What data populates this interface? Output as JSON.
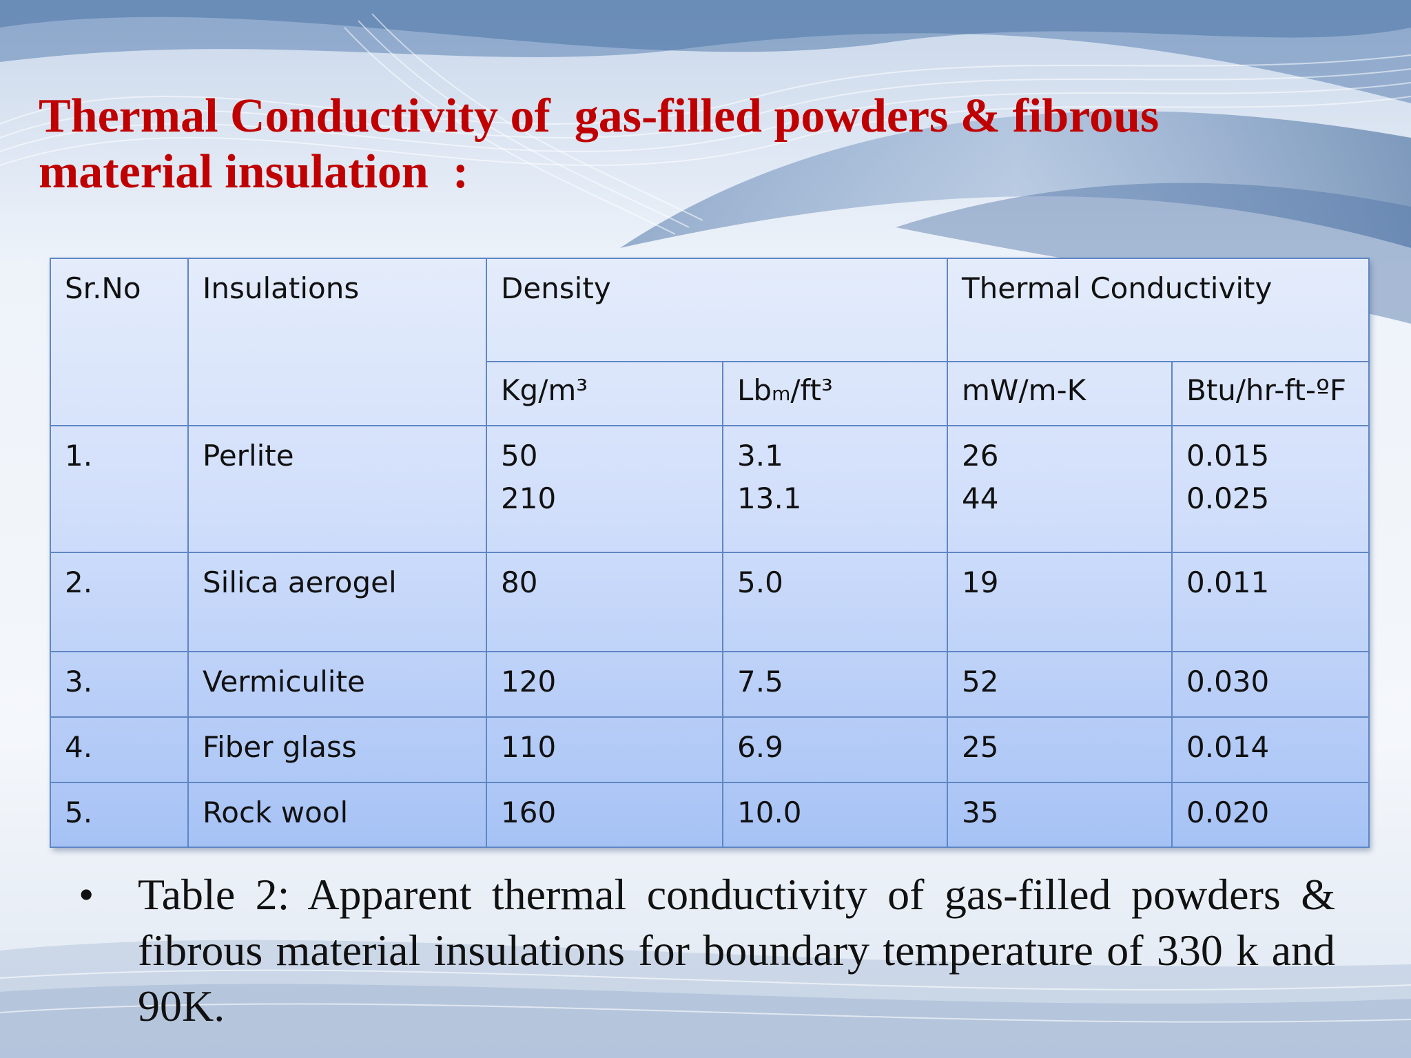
{
  "slide": {
    "title": "Thermal Conductivity of  gas-filled powders & fibrous\nmaterial insulation  :",
    "table": {
      "header": {
        "sr_no": "Sr.No",
        "insulations": "Insulations",
        "density": "Density",
        "thermal_conductivity": "Thermal   Conductivity",
        "units": [
          "Kg/m³",
          "Lbm/ft³",
          "mW/m-K",
          "Btu/hr-ft-ºF"
        ]
      },
      "rows": [
        {
          "sr": "1.",
          "name": "Perlite",
          "kg_m3": "50\n210",
          "lbm_ft3": "3.1\n13.1",
          "mw_mk": "26\n44",
          "btu": "0.015\n0.025"
        },
        {
          "sr": "2.",
          "name": "Silica aerogel",
          "kg_m3": "80",
          "lbm_ft3": "5.0",
          "mw_mk": "19",
          "btu": "0.011"
        },
        {
          "sr": "3.",
          "name": "Vermiculite",
          "kg_m3": "120",
          "lbm_ft3": "7.5",
          "mw_mk": "52",
          "btu": "0.030"
        },
        {
          "sr": "4.",
          "name": "Fiber glass",
          "kg_m3": "110",
          "lbm_ft3": "6.9",
          "mw_mk": "25",
          "btu": "0.014"
        },
        {
          "sr": "5.",
          "name": "Rock wool",
          "kg_m3": "160",
          "lbm_ft3": "10.0",
          "mw_mk": "35",
          "btu": "0.020"
        }
      ]
    },
    "caption": {
      "bullet": "•",
      "text": "Table 2: Apparent thermal conductivity of gas-filled powders & fibrous material insulations for boundary temperature of 330 k and 90K."
    },
    "colors": {
      "title": "#c00000",
      "table_border": "#5e86c4",
      "table_top": "#e4ecfb",
      "table_bottom": "#a6c2f5"
    }
  }
}
